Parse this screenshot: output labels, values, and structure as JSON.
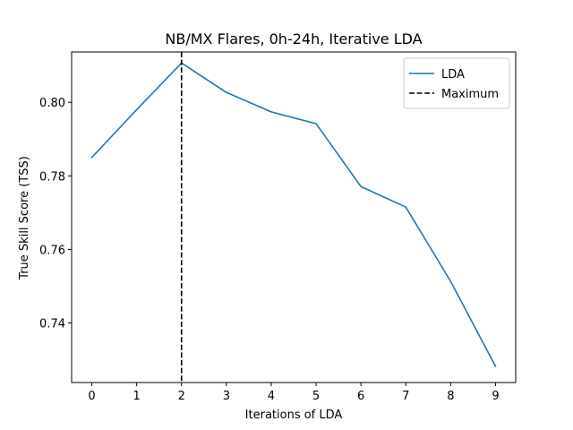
{
  "chart_data": {
    "type": "line",
    "title": "NB/MX Flares, 0h-24h, Iterative LDA",
    "xlabel": "Iterations of LDA",
    "ylabel": "True Skill Score (TSS)",
    "x": [
      0,
      1,
      2,
      3,
      4,
      5,
      6,
      7,
      8,
      9
    ],
    "xticks": [
      0,
      1,
      2,
      3,
      4,
      5,
      6,
      7,
      8,
      9
    ],
    "xlim": [
      -0.45,
      9.45
    ],
    "yticks": [
      0.74,
      0.76,
      0.78,
      0.8
    ],
    "ytick_labels": [
      "0.74",
      "0.76",
      "0.78",
      "0.80"
    ],
    "ylim": [
      0.7238,
      0.8137
    ],
    "series": [
      {
        "name": "LDA",
        "color": "#1f77b4",
        "style": "solid",
        "values": [
          0.785,
          0.798,
          0.8107,
          0.8027,
          0.7974,
          0.7942,
          0.7771,
          0.7715,
          0.7513,
          0.7282
        ]
      }
    ],
    "vlines": [
      {
        "name": "Maximum",
        "x": 2,
        "color": "#000000",
        "style": "dashed"
      }
    ],
    "legend": {
      "placement": "top-right"
    },
    "grid": false
  }
}
